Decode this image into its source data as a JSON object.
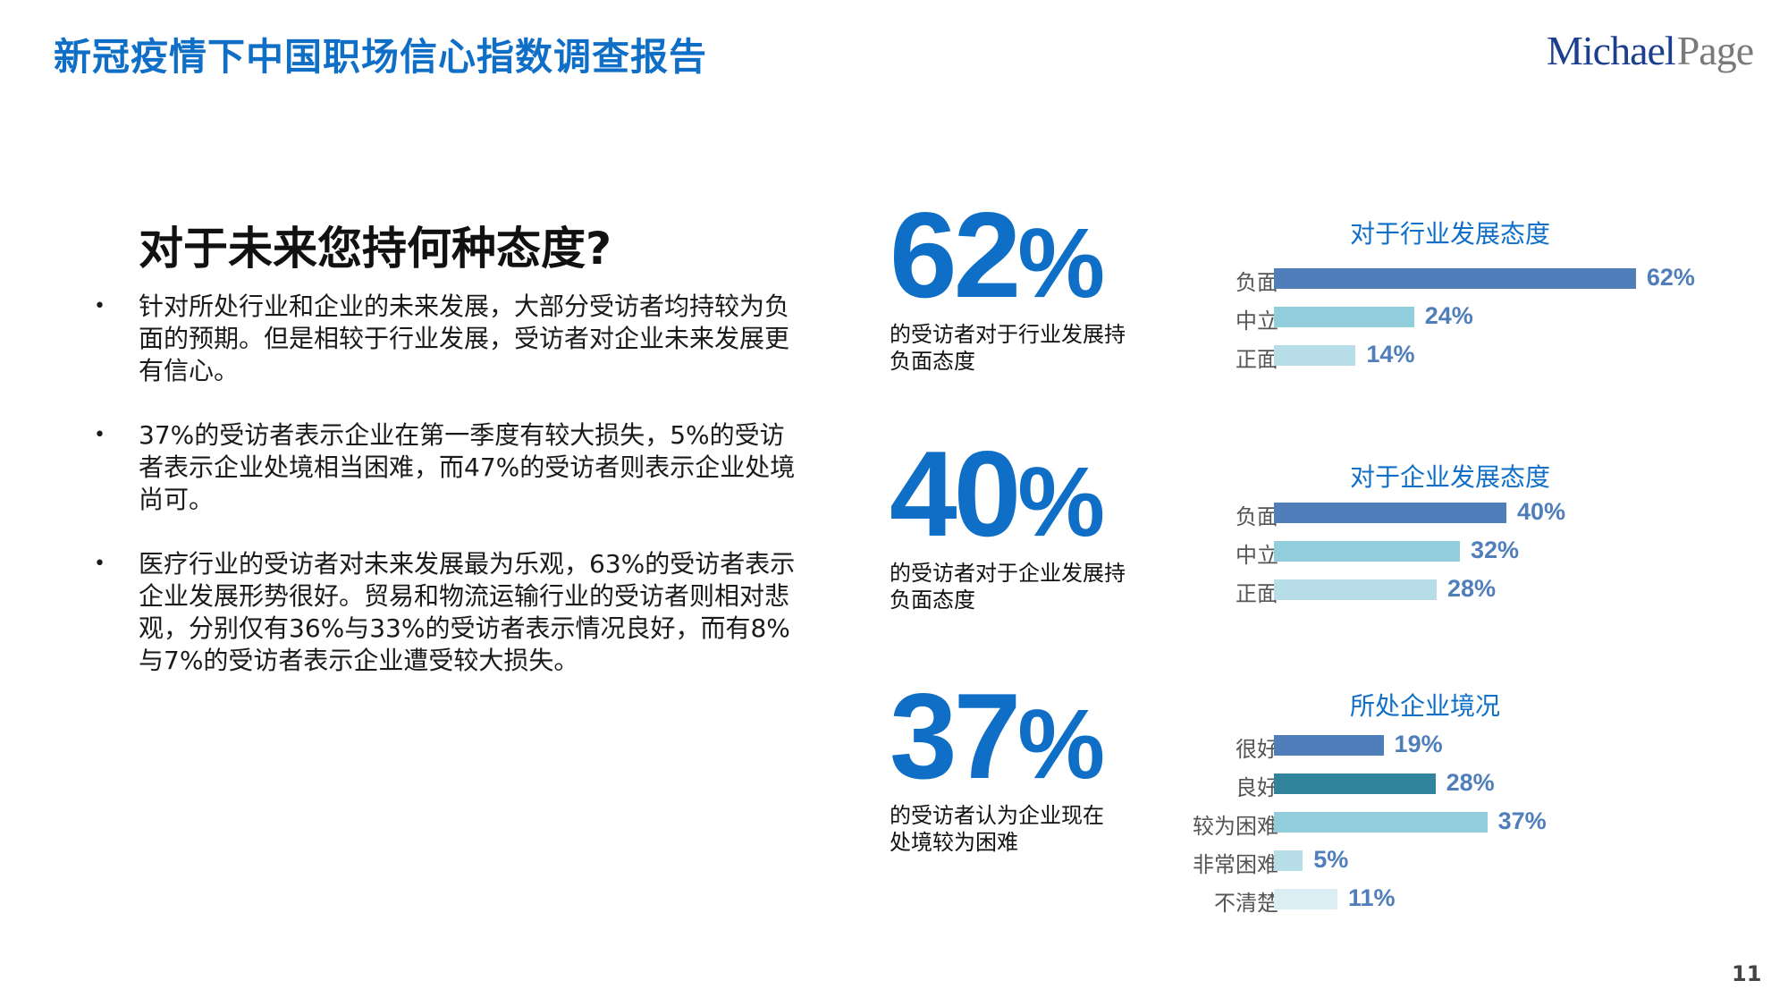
{
  "header": {
    "title": "新冠疫情下中国职场信心指数调查报告",
    "logo": {
      "part1": "Michael",
      "part2": "Page"
    }
  },
  "section": {
    "title": "对于未来您持何种态度?",
    "bullets": [
      "针对所处行业和企业的未来发展，大部分受访者均持较为负面的预期。但是相较于行业发展，受访者对企业未来发展更有信心。",
      "37%的受访者表示企业在第一季度有较大损失，5%的受访者表示企业处境相当困难，而47%的受访者则表示企业处境尚可。",
      "医疗行业的受访者对未来发展最为乐观，63%的受访者表示企业发展形势很好。贸易和物流运输行业的受访者则相对悲观，分别仅有36%与33%的受访者表示情况良好，而有8%与7%的受访者表示企业遭受较大损失。"
    ],
    "bullet_symbol": "•"
  },
  "stats": [
    {
      "number": "62",
      "unit": "%",
      "desc_line1": "的受访者对于行业发展持",
      "desc_line2": "负面态度"
    },
    {
      "number": "40",
      "unit": "%",
      "desc_line1": "的受访者对于企业发展持",
      "desc_line2": "负面态度"
    },
    {
      "number": "37",
      "unit": "%",
      "desc_line1": "的受访者认为企业现在",
      "desc_line2": "处境较为困难"
    }
  ],
  "colors": {
    "brand_blue": "#0F6FC6",
    "bar_dark_blue": "#4F7EBB",
    "bar_teal": "#31849B",
    "bar_light_blue": "#92CDDC",
    "bar_lighter_blue": "#B7DDE8",
    "bar_palest_blue": "#DAEEF3",
    "value_text": "#4F7EBB"
  },
  "chart_data": [
    {
      "type": "bar",
      "orientation": "horizontal",
      "title": "对于行业发展态度",
      "categories": [
        "负面",
        "中立",
        "正面"
      ],
      "values": [
        62,
        24,
        14
      ],
      "labels": [
        "62%",
        "24%",
        "14%"
      ],
      "unit": "%",
      "bar_colors": [
        "#4F7EBB",
        "#92CDDC",
        "#B7DDE8"
      ],
      "grid": false,
      "legend": "none"
    },
    {
      "type": "bar",
      "orientation": "horizontal",
      "title": "对于企业发展态度",
      "categories": [
        "负面",
        "中立",
        "正面"
      ],
      "values": [
        40,
        32,
        28
      ],
      "labels": [
        "40%",
        "32%",
        "28%"
      ],
      "unit": "%",
      "bar_colors": [
        "#4F7EBB",
        "#92CDDC",
        "#B7DDE8"
      ],
      "grid": false,
      "legend": "none"
    },
    {
      "type": "bar",
      "orientation": "horizontal",
      "title": "所处企业境况",
      "categories": [
        "很好",
        "良好",
        "较为困难",
        "非常困难",
        "不清楚"
      ],
      "values": [
        19,
        28,
        37,
        5,
        11
      ],
      "labels": [
        "19%",
        "28%",
        "37%",
        "5%",
        "11%"
      ],
      "unit": "%",
      "bar_colors": [
        "#4F7EBB",
        "#31849B",
        "#92CDDC",
        "#B7DDE8",
        "#DAEEF3"
      ],
      "grid": false,
      "legend": "none"
    }
  ],
  "footer": {
    "page_number": "11"
  }
}
